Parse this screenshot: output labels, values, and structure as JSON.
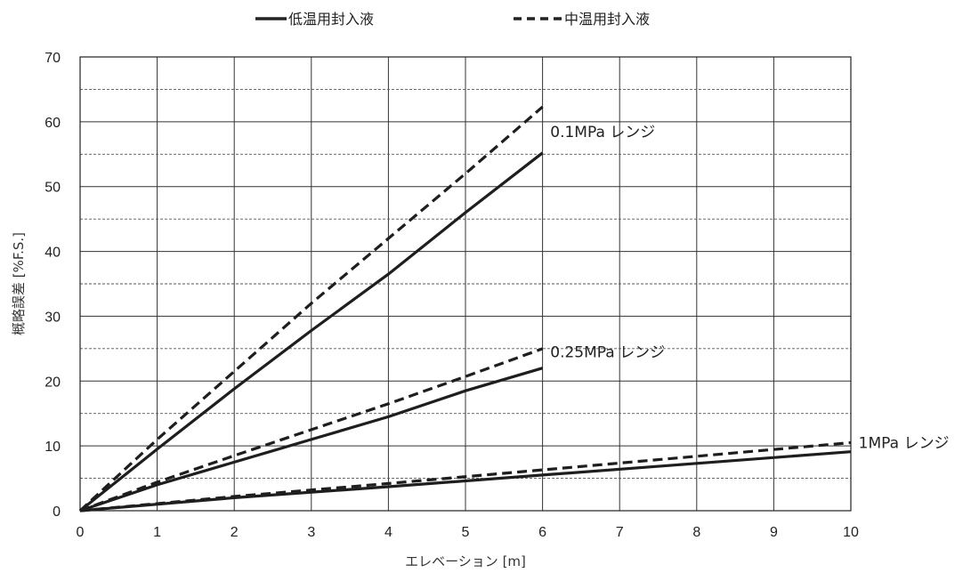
{
  "chart_data": {
    "type": "line",
    "legend": [
      {
        "label": "低温用封入液",
        "style": "solid"
      },
      {
        "label": "中温用封入液",
        "style": "dashed"
      }
    ],
    "xlabel": "エレベーション [m]",
    "ylabel": "概略誤差 [%F.S.]",
    "xlim": [
      0,
      10
    ],
    "ylim": [
      0,
      70
    ],
    "x_ticks": [
      "0",
      "1",
      "2",
      "3",
      "4",
      "5",
      "6",
      "7",
      "8",
      "9",
      "10"
    ],
    "y_ticks": [
      "0",
      "10",
      "20",
      "30",
      "40",
      "50",
      "60",
      "70"
    ],
    "grid": true,
    "annotations": [
      {
        "text": "0.1MPa レンジ",
        "x": 6.1,
        "y": 58.5
      },
      {
        "text": "0.25MPa レンジ",
        "x": 6.1,
        "y": 24.5
      },
      {
        "text": "1MPa レンジ",
        "x": 10.1,
        "y": 10.5
      }
    ],
    "series": [
      {
        "style": "solid",
        "range": "0.1MPa",
        "x": [
          0,
          1,
          2,
          3,
          4,
          5,
          6
        ],
        "y": [
          0,
          9.5,
          18.8,
          27.8,
          36.5,
          46.0,
          55.2
        ]
      },
      {
        "style": "dashed",
        "range": "0.1MPa",
        "x": [
          0,
          1,
          2,
          3,
          4,
          5,
          6
        ],
        "y": [
          0,
          11.0,
          21.5,
          32.0,
          42.0,
          52.0,
          62.3
        ]
      },
      {
        "style": "solid",
        "range": "0.25MPa",
        "x": [
          0,
          1,
          2,
          3,
          4,
          5,
          6
        ],
        "y": [
          0,
          4.0,
          7.5,
          11.0,
          14.5,
          18.5,
          22.0
        ]
      },
      {
        "style": "dashed",
        "range": "0.25MPa",
        "x": [
          0,
          1,
          2,
          3,
          4,
          5,
          6
        ],
        "y": [
          0,
          4.4,
          8.5,
          12.5,
          16.5,
          20.7,
          25.0
        ]
      },
      {
        "style": "solid",
        "range": "1MPa",
        "x": [
          0,
          2,
          4,
          6,
          8,
          10
        ],
        "y": [
          0,
          2.0,
          3.7,
          5.5,
          7.3,
          9.1
        ]
      },
      {
        "style": "dashed",
        "range": "1MPa",
        "x": [
          0,
          2,
          4,
          6,
          8,
          10
        ],
        "y": [
          0,
          2.2,
          4.2,
          6.3,
          8.4,
          10.5
        ]
      }
    ]
  }
}
